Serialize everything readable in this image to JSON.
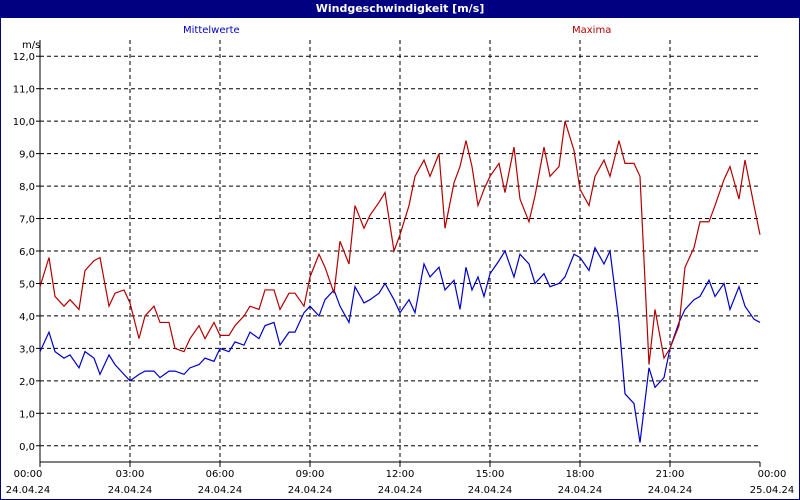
{
  "header": {
    "title": "Windgeschwindigkeit [m/s]"
  },
  "chart_data": {
    "type": "line",
    "title": "Windgeschwindigkeit [m/s]",
    "ylabel": "m/s",
    "ylim": [
      -0.5,
      12.5
    ],
    "yticks": [
      "0,0",
      "1,0",
      "2,0",
      "3,0",
      "4,0",
      "5,0",
      "6,0",
      "7,0",
      "8,0",
      "9,0",
      "10,0",
      "11,0",
      "12,0"
    ],
    "xlim": [
      0,
      24
    ],
    "xticks": [
      {
        "time": "00:00",
        "date": "24.04.24"
      },
      {
        "time": "03:00",
        "date": "24.04.24"
      },
      {
        "time": "06:00",
        "date": "24.04.24"
      },
      {
        "time": "09:00",
        "date": "24.04.24"
      },
      {
        "time": "12:00",
        "date": "24.04.24"
      },
      {
        "time": "15:00",
        "date": "24.04.24"
      },
      {
        "time": "18:00",
        "date": "24.04.24"
      },
      {
        "time": "21:00",
        "date": "24.04.24"
      },
      {
        "time": "00:00",
        "date": "25.04.24"
      }
    ],
    "grid": true,
    "legend": "top",
    "series": [
      {
        "name": "Mittelwerte",
        "color": "#0000c8",
        "x": [
          0,
          0.3,
          0.5,
          0.8,
          1.0,
          1.3,
          1.5,
          1.8,
          2.0,
          2.3,
          2.5,
          2.8,
          3.0,
          3.3,
          3.5,
          3.8,
          4.0,
          4.3,
          4.5,
          4.8,
          5.0,
          5.3,
          5.5,
          5.8,
          6.0,
          6.3,
          6.5,
          6.8,
          7.0,
          7.3,
          7.5,
          7.8,
          8.0,
          8.3,
          8.5,
          8.8,
          9.0,
          9.3,
          9.5,
          9.8,
          10.0,
          10.3,
          10.5,
          10.8,
          11.0,
          11.3,
          11.5,
          11.8,
          12.0,
          12.3,
          12.5,
          12.8,
          13.0,
          13.3,
          13.5,
          13.8,
          14.0,
          14.2,
          14.4,
          14.6,
          14.8,
          15.0,
          15.3,
          15.5,
          15.8,
          16.0,
          16.3,
          16.5,
          16.8,
          17.0,
          17.3,
          17.5,
          17.8,
          18.0,
          18.3,
          18.5,
          18.8,
          19.0,
          19.3,
          19.5,
          19.8,
          20.0,
          20.3,
          20.5,
          20.8,
          21.0,
          21.3,
          21.5,
          21.8,
          22.0,
          22.3,
          22.5,
          22.8,
          23.0,
          23.3,
          23.5,
          23.8,
          24.0
        ],
        "values": [
          2.9,
          3.5,
          2.9,
          2.7,
          2.8,
          2.4,
          2.9,
          2.7,
          2.2,
          2.8,
          2.5,
          2.2,
          2.0,
          2.2,
          2.3,
          2.3,
          2.1,
          2.3,
          2.3,
          2.2,
          2.4,
          2.5,
          2.7,
          2.6,
          3.0,
          2.9,
          3.2,
          3.1,
          3.5,
          3.3,
          3.7,
          3.8,
          3.1,
          3.5,
          3.5,
          4.1,
          4.3,
          4.0,
          4.5,
          4.8,
          4.3,
          3.8,
          4.9,
          4.4,
          4.5,
          4.7,
          5.0,
          4.5,
          4.1,
          4.5,
          4.1,
          5.6,
          5.2,
          5.5,
          4.8,
          5.1,
          4.2,
          5.5,
          4.8,
          5.2,
          4.6,
          5.3,
          5.7,
          6.0,
          5.2,
          5.9,
          5.6,
          5.0,
          5.3,
          4.9,
          5.0,
          5.2,
          5.9,
          5.8,
          5.4,
          6.1,
          5.6,
          6.0,
          3.8,
          1.6,
          1.3,
          0.1,
          2.4,
          1.8,
          2.1,
          3.0,
          3.8,
          4.2,
          4.5,
          4.6,
          5.1,
          4.6,
          5.0,
          4.2,
          4.9,
          4.3,
          3.9,
          3.8
        ]
      },
      {
        "name": "Maxima",
        "color": "#b40000",
        "x": [
          0,
          0.3,
          0.5,
          0.8,
          1.0,
          1.3,
          1.5,
          1.8,
          2.0,
          2.3,
          2.5,
          2.8,
          3.0,
          3.3,
          3.5,
          3.8,
          4.0,
          4.3,
          4.5,
          4.8,
          5.0,
          5.3,
          5.5,
          5.8,
          6.0,
          6.3,
          6.5,
          6.8,
          7.0,
          7.3,
          7.5,
          7.8,
          8.0,
          8.3,
          8.5,
          8.8,
          9.0,
          9.3,
          9.5,
          9.8,
          10.0,
          10.3,
          10.5,
          10.8,
          11.0,
          11.3,
          11.5,
          11.8,
          12.0,
          12.3,
          12.5,
          12.8,
          13.0,
          13.3,
          13.5,
          13.8,
          14.0,
          14.2,
          14.4,
          14.6,
          14.8,
          15.0,
          15.3,
          15.5,
          15.8,
          16.0,
          16.3,
          16.5,
          16.8,
          17.0,
          17.3,
          17.5,
          17.8,
          18.0,
          18.3,
          18.5,
          18.8,
          19.0,
          19.3,
          19.5,
          19.8,
          20.0,
          20.3,
          20.5,
          20.8,
          21.0,
          21.3,
          21.5,
          21.8,
          22.0,
          22.3,
          22.5,
          22.8,
          23.0,
          23.3,
          23.5,
          23.8,
          24.0
        ],
        "values": [
          4.9,
          5.8,
          4.6,
          4.3,
          4.5,
          4.2,
          5.4,
          5.7,
          5.8,
          4.3,
          4.7,
          4.8,
          4.4,
          3.3,
          4.0,
          4.3,
          3.8,
          3.8,
          3.0,
          2.9,
          3.3,
          3.7,
          3.3,
          3.8,
          3.4,
          3.4,
          3.7,
          4.0,
          4.3,
          4.2,
          4.8,
          4.8,
          4.2,
          4.7,
          4.7,
          4.3,
          5.2,
          5.9,
          5.5,
          4.7,
          6.3,
          5.6,
          7.4,
          6.7,
          7.1,
          7.5,
          7.8,
          6.0,
          6.5,
          7.4,
          8.3,
          8.8,
          8.3,
          9.0,
          6.7,
          8.1,
          8.6,
          9.4,
          8.6,
          7.4,
          7.9,
          8.3,
          8.7,
          7.8,
          9.2,
          7.6,
          6.9,
          7.7,
          9.2,
          8.3,
          8.6,
          10.0,
          9.1,
          7.9,
          7.4,
          8.3,
          8.8,
          8.3,
          9.4,
          8.7,
          8.7,
          8.3,
          2.5,
          4.2,
          2.7,
          3.0,
          3.7,
          5.5,
          6.1,
          6.9,
          6.9,
          7.4,
          8.2,
          8.6,
          7.6,
          8.8,
          7.4,
          6.5
        ]
      }
    ]
  }
}
